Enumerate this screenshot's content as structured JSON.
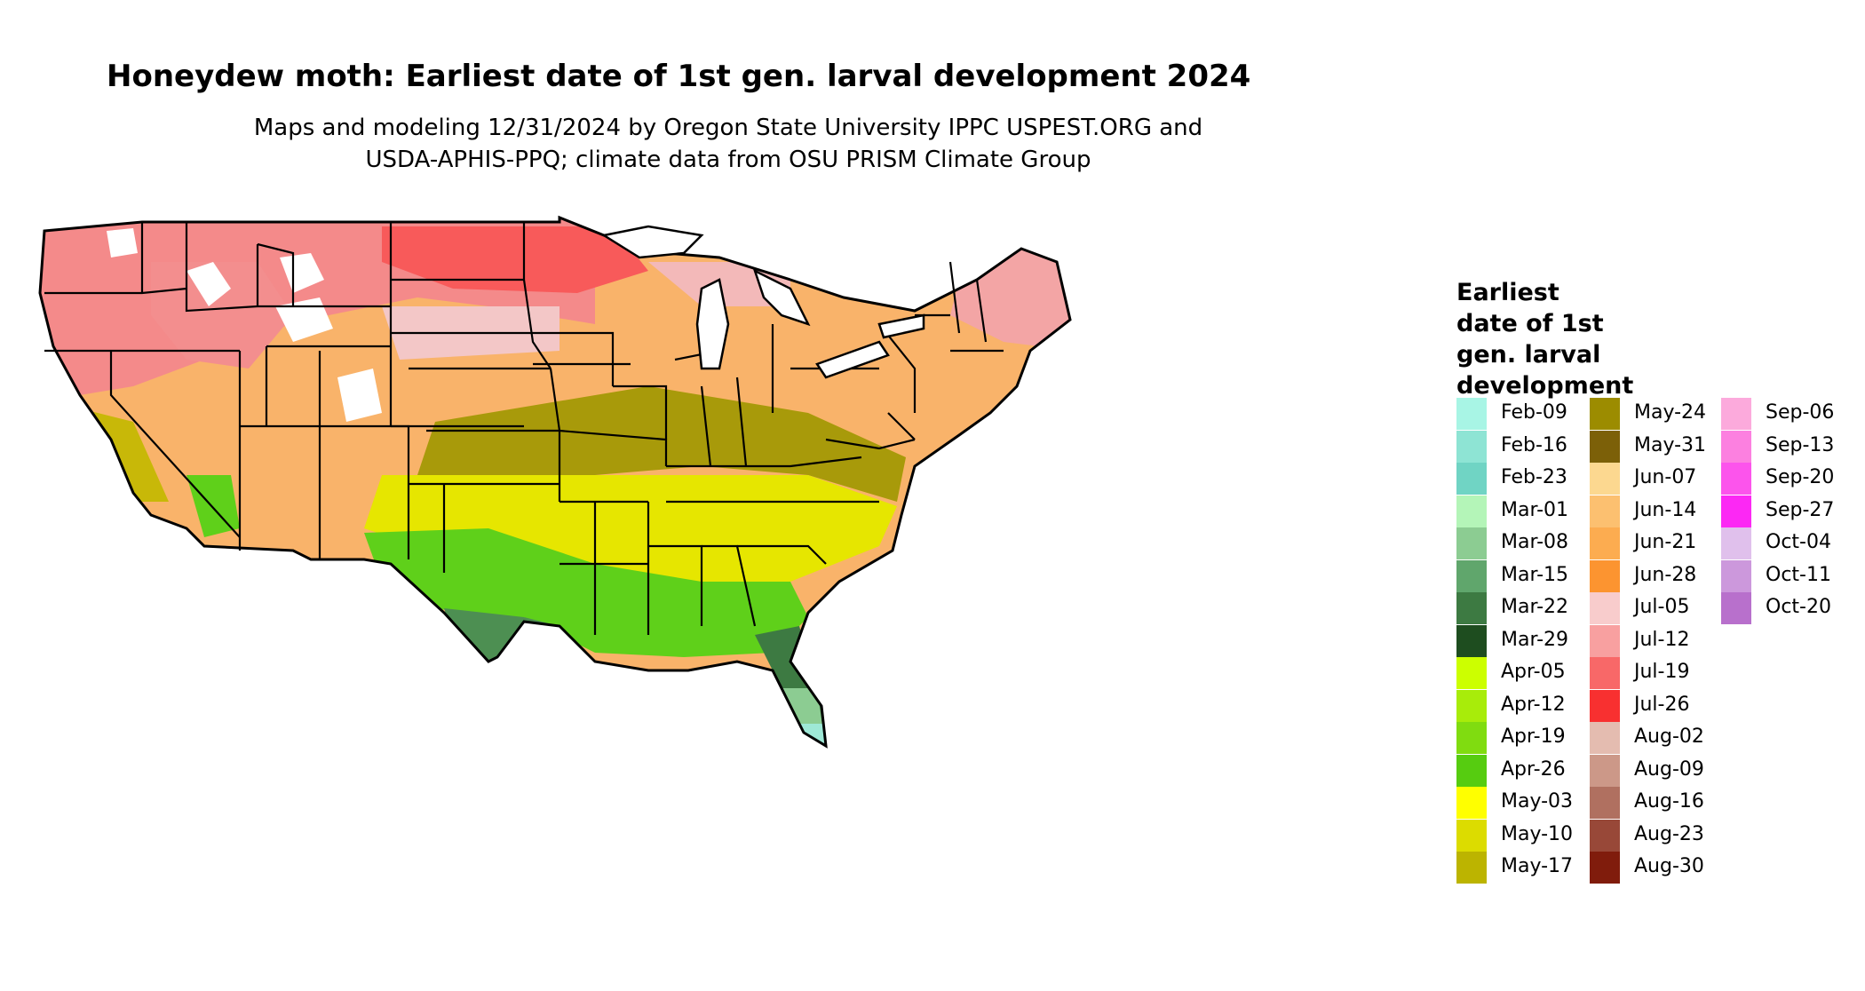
{
  "title": "Honeydew moth: Earliest date of 1st gen. larval development 2024",
  "subtitle_line1": "Maps and modeling 12/31/2024 by Oregon State University IPPC USPEST.ORG and",
  "subtitle_line2": "USDA-APHIS-PPQ; climate data from OSU PRISM Climate Group",
  "legend": {
    "title_lines": [
      "Earliest",
      "date of 1st",
      "gen. larval",
      "development"
    ],
    "columns": [
      [
        {
          "label": "Feb-09",
          "color": "#a8f5e5"
        },
        {
          "label": "Feb-16",
          "color": "#8ee4d4"
        },
        {
          "label": "Feb-23",
          "color": "#70d4c4"
        },
        {
          "label": "Mar-01",
          "color": "#b4f5b8"
        },
        {
          "label": "Mar-08",
          "color": "#8ccc92"
        },
        {
          "label": "Mar-15",
          "color": "#60a66c"
        },
        {
          "label": "Mar-22",
          "color": "#3d7a42"
        },
        {
          "label": "Mar-29",
          "color": "#1e4d1f"
        },
        {
          "label": "Apr-05",
          "color": "#ccff00"
        },
        {
          "label": "Apr-12",
          "color": "#a8ec0a"
        },
        {
          "label": "Apr-19",
          "color": "#80dc10"
        },
        {
          "label": "Apr-26",
          "color": "#56cc10"
        },
        {
          "label": "May-03",
          "color": "#ffff00"
        },
        {
          "label": "May-10",
          "color": "#dcdc00"
        },
        {
          "label": "May-17",
          "color": "#bcb400"
        }
      ],
      [
        {
          "label": "May-24",
          "color": "#9c8c00"
        },
        {
          "label": "May-31",
          "color": "#7c6008"
        },
        {
          "label": "Jun-07",
          "color": "#fcd890"
        },
        {
          "label": "Jun-14",
          "color": "#fcc070"
        },
        {
          "label": "Jun-21",
          "color": "#fcac50"
        },
        {
          "label": "Jun-28",
          "color": "#fc9430"
        },
        {
          "label": "Jul-05",
          "color": "#f8cccc"
        },
        {
          "label": "Jul-12",
          "color": "#f8a0a0"
        },
        {
          "label": "Jul-19",
          "color": "#f86868"
        },
        {
          "label": "Jul-26",
          "color": "#f83030"
        },
        {
          "label": "Aug-02",
          "color": "#e4bcb0"
        },
        {
          "label": "Aug-09",
          "color": "#cc9888"
        },
        {
          "label": "Aug-16",
          "color": "#b07060"
        },
        {
          "label": "Aug-23",
          "color": "#984838"
        },
        {
          "label": "Aug-30",
          "color": "#801c0c"
        }
      ],
      [
        {
          "label": "Sep-06",
          "color": "#fcaadc"
        },
        {
          "label": "Sep-13",
          "color": "#fc80e0"
        },
        {
          "label": "Sep-20",
          "color": "#fc54ec"
        },
        {
          "label": "Sep-27",
          "color": "#fc28f4"
        },
        {
          "label": "Oct-04",
          "color": "#e0c0ec"
        },
        {
          "label": "Oct-11",
          "color": "#cc98dc"
        },
        {
          "label": "Oct-20",
          "color": "#b870cc"
        }
      ]
    ]
  },
  "map": {
    "description_colors": {
      "border": "#000000",
      "ocean": "#ffffff",
      "north": "#f48a8a",
      "northern_plains": "#f3b9b9",
      "central": "#f9b36a",
      "midlatitude": "#a89a0a",
      "south": "#e6e600",
      "gulf": "#5fd01a",
      "texas_coast": "#4d8f52",
      "florida_tip": "#9ee8d6",
      "mountains": "#ffffff"
    }
  }
}
